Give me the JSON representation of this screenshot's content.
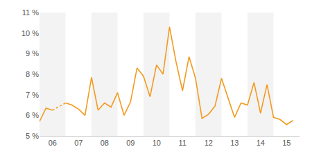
{
  "chart_data": {
    "type": "line",
    "color": "#f39a1e",
    "x": [
      2006,
      2006.25,
      2006.5,
      2006.75,
      2007,
      2007.25,
      2007.5,
      2007.75,
      2008,
      2008.25,
      2008.5,
      2008.75,
      2009,
      2009.25,
      2009.5,
      2009.75,
      2010,
      2010.25,
      2010.5,
      2010.75,
      2011,
      2011.25,
      2011.5,
      2011.75,
      2012,
      2012.25,
      2012.5,
      2012.75,
      2013,
      2013.25,
      2013.5,
      2013.75,
      2014,
      2014.25,
      2014.5,
      2014.75,
      2015,
      2015.25,
      2015.5,
      2015.75
    ],
    "values": [
      5.7,
      6.35,
      6.25,
      null,
      6.6,
      6.5,
      6.3,
      6.0,
      7.85,
      6.25,
      6.6,
      6.4,
      7.1,
      6.0,
      6.65,
      8.3,
      7.9,
      6.9,
      8.45,
      8.0,
      10.3,
      8.6,
      7.2,
      8.85,
      7.8,
      5.85,
      6.05,
      6.45,
      7.8,
      6.85,
      5.9,
      6.6,
      6.5,
      7.6,
      6.1,
      7.5,
      5.9,
      5.8,
      5.55,
      5.75
    ],
    "xlim": [
      2006,
      2016
    ],
    "xticks": [
      {
        "value": 2006.5,
        "label": "06"
      },
      {
        "value": 2007.5,
        "label": "07"
      },
      {
        "value": 2008.5,
        "label": "08"
      },
      {
        "value": 2009.5,
        "label": "09"
      },
      {
        "value": 2010.5,
        "label": "10"
      },
      {
        "value": 2011.5,
        "label": "11"
      },
      {
        "value": 2012.5,
        "label": "12"
      },
      {
        "value": 2013.5,
        "label": "13"
      },
      {
        "value": 2014.5,
        "label": "14"
      },
      {
        "value": 2015.5,
        "label": "15"
      }
    ],
    "ylim": [
      5,
      11
    ],
    "yticks": [
      {
        "value": 5,
        "label": "5 %"
      },
      {
        "value": 6,
        "label": "6 %"
      },
      {
        "value": 7,
        "label": "7 %"
      },
      {
        "value": 8,
        "label": "8 %"
      },
      {
        "value": 9,
        "label": "9 %"
      },
      {
        "value": 10,
        "label": "10 %"
      },
      {
        "value": 11,
        "label": "11 %"
      }
    ],
    "grid": false
  }
}
